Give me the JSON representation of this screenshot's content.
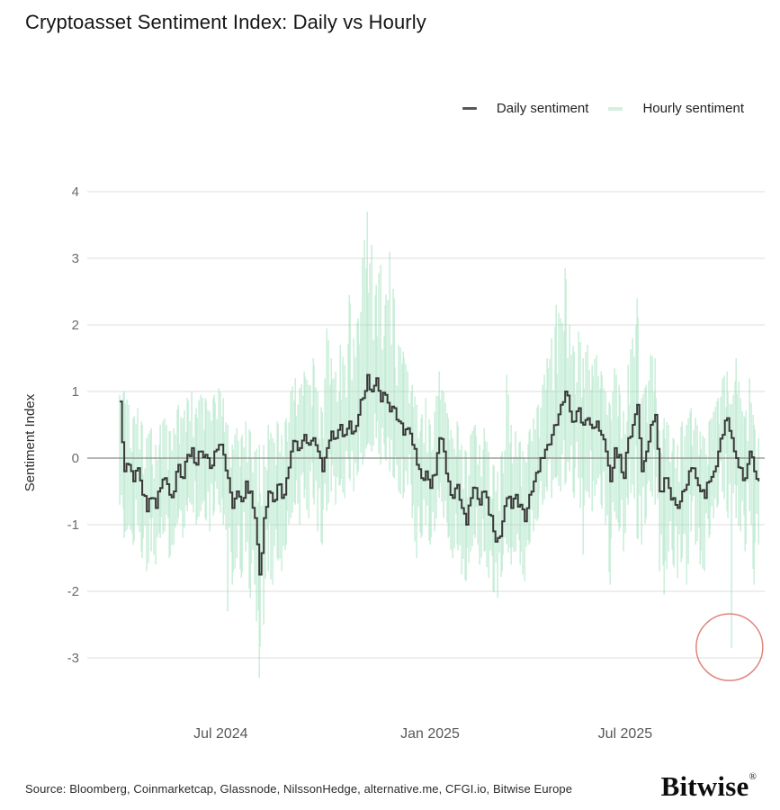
{
  "page": {
    "title": "Cryptoasset Sentiment Index: Daily vs Hourly"
  },
  "legend": {
    "items": [
      {
        "label": "Daily sentiment",
        "swatch_color": "#55585a"
      },
      {
        "label": "Hourly sentiment",
        "swatch_color": "#d5efe0"
      }
    ]
  },
  "footer": {
    "source": "Source: Bloomberg, Coinmarketcap, Glassnode, NilssonHedge, alternative.me, CFGI.io, Bitwise Europe",
    "logo_text": "Bitwise",
    "logo_mark": "®"
  },
  "chart_data": {
    "type": "line",
    "title": "Cryptoasset Sentiment Index: Daily vs Hourly",
    "xlabel": "",
    "ylabel": "Sentiment Index",
    "ylim": [
      -3,
      4
    ],
    "grid": "horizontal-only",
    "legend_position": "top-right",
    "colors": {
      "daily_line": "#383838",
      "hourly_line": "#8edcb0",
      "gridline": "#e4e4e4",
      "zero_line": "#8a8a8a",
      "tick_label": "#6b6b6b",
      "x_label": "#585858",
      "annotation_circle": "#e0837b"
    },
    "yticks": [
      4,
      3,
      2,
      1,
      0,
      -1,
      -2,
      -3
    ],
    "xticks": [
      {
        "label": "Jul 2024",
        "pos": 0.197
      },
      {
        "label": "Jan 2025",
        "pos": 0.506
      },
      {
        "label": "Jul 2025",
        "pos": 0.794
      }
    ],
    "x_start_frac": 0.048,
    "x_end_frac": 0.991,
    "series": [
      {
        "name": "Daily sentiment",
        "style": "step",
        "values": [
          0.85,
          -0.2,
          -0.1,
          -0.35,
          -0.15,
          -0.55,
          -0.8,
          -0.6,
          -0.75,
          -0.45,
          -0.3,
          -0.55,
          -0.5,
          -0.1,
          -0.3,
          0.05,
          0.15,
          -0.1,
          0.1,
          0.05,
          -0.15,
          0.1,
          0.2,
          0.05,
          -0.3,
          -0.75,
          -0.5,
          -0.65,
          -0.35,
          -0.5,
          -0.9,
          -1.75,
          -0.9,
          -0.5,
          -0.65,
          -0.4,
          -0.6,
          -0.3,
          0.1,
          0.25,
          0.15,
          0.35,
          0.2,
          0.3,
          0.1,
          -0.2,
          0.15,
          0.4,
          0.3,
          0.5,
          0.35,
          0.55,
          0.4,
          0.65,
          0.9,
          1.25,
          1.0,
          1.2,
          0.85,
          0.95,
          0.7,
          0.75,
          0.55,
          0.35,
          0.45,
          0.2,
          -0.1,
          -0.3,
          -0.2,
          -0.45,
          -0.25,
          0.3,
          0.1,
          -0.35,
          -0.6,
          -0.4,
          -0.75,
          -1.0,
          -0.6,
          -0.45,
          -0.7,
          -0.5,
          -0.85,
          -1.1,
          -1.2,
          -0.95,
          -0.6,
          -0.75,
          -0.55,
          -0.7,
          -0.95,
          -0.55,
          -0.35,
          -0.2,
          0.0,
          0.2,
          0.35,
          0.5,
          0.8,
          1.0,
          0.7,
          0.55,
          0.75,
          0.5,
          0.6,
          0.45,
          0.55,
          0.35,
          0.1,
          -0.35,
          0.15,
          0.05,
          -0.3,
          0.3,
          0.5,
          0.8,
          -0.2,
          0.1,
          0.5,
          0.65,
          -0.5,
          -0.3,
          -0.45,
          -0.6,
          -0.75,
          -0.5,
          -0.4,
          -0.15,
          -0.3,
          -0.5,
          -0.6,
          -0.35,
          -0.2,
          0.1,
          0.35,
          0.6,
          0.3,
          0.0,
          -0.15,
          -0.3,
          0.1,
          -0.2,
          -0.35
        ]
      },
      {
        "name": "Hourly sentiment",
        "style": "range-strokes",
        "max": [
          0.95,
          1.0,
          0.8,
          0.6,
          0.75,
          0.5,
          0.3,
          0.45,
          0.2,
          0.5,
          0.6,
          0.4,
          0.45,
          0.8,
          0.6,
          0.9,
          1.0,
          0.75,
          0.95,
          0.9,
          0.7,
          0.95,
          1.05,
          0.9,
          0.5,
          0.2,
          0.45,
          0.3,
          0.55,
          0.4,
          0.1,
          0.2,
          0.2,
          0.5,
          0.3,
          0.55,
          0.35,
          0.6,
          1.0,
          1.2,
          1.05,
          1.3,
          1.1,
          1.5,
          1.0,
          0.7,
          1.95,
          1.5,
          1.3,
          1.7,
          1.4,
          2.45,
          1.8,
          2.1,
          3.0,
          3.7,
          3.2,
          2.6,
          2.9,
          2.3,
          3.1,
          2.4,
          1.7,
          1.6,
          1.3,
          1.1,
          0.8,
          0.6,
          0.9,
          0.5,
          0.7,
          1.3,
          1.0,
          0.6,
          0.3,
          0.55,
          0.2,
          0.1,
          0.35,
          0.5,
          0.2,
          0.45,
          0.1,
          -0.1,
          -0.2,
          0.1,
          1.25,
          0.5,
          0.4,
          0.25,
          0.0,
          0.4,
          0.6,
          0.8,
          1.1,
          1.5,
          1.8,
          2.3,
          2.1,
          2.85,
          2.0,
          1.6,
          1.9,
          1.5,
          1.7,
          1.4,
          1.55,
          1.3,
          1.0,
          0.8,
          1.35,
          1.1,
          0.7,
          1.4,
          1.8,
          2.4,
          0.9,
          1.1,
          1.55,
          1.5,
          0.4,
          0.6,
          0.5,
          0.3,
          0.2,
          0.55,
          0.5,
          0.75,
          0.6,
          0.4,
          0.3,
          0.55,
          0.7,
          0.9,
          1.2,
          1.3,
          0.8,
          1.5,
          0.9,
          0.6,
          1.2,
          0.5,
          0.3
        ],
        "min": [
          -0.7,
          -1.2,
          -1.0,
          -1.3,
          -1.0,
          -1.5,
          -1.7,
          -1.4,
          -1.6,
          -1.2,
          -1.1,
          -1.5,
          -1.3,
          -0.9,
          -1.2,
          -0.8,
          -0.7,
          -1.0,
          -0.8,
          -0.9,
          -1.1,
          -0.8,
          -0.7,
          -1.0,
          -2.3,
          -1.9,
          -1.5,
          -1.8,
          -1.4,
          -2.1,
          -1.9,
          -3.3,
          -2.5,
          -1.7,
          -1.9,
          -1.5,
          -1.7,
          -1.3,
          -0.9,
          -0.7,
          -1.0,
          -0.6,
          -0.9,
          -0.6,
          -1.1,
          -1.3,
          -0.8,
          -0.5,
          -0.7,
          -0.4,
          -0.6,
          -0.3,
          -0.5,
          -0.2,
          -0.1,
          0.2,
          0.1,
          0.3,
          -0.1,
          0.0,
          -0.2,
          -0.3,
          -0.5,
          -0.6,
          -0.4,
          -0.9,
          -1.5,
          -1.2,
          -1.0,
          -1.3,
          -1.1,
          -0.6,
          -0.9,
          -1.2,
          -1.5,
          -1.3,
          -1.75,
          -1.85,
          -1.4,
          -1.2,
          -1.6,
          -1.4,
          -1.8,
          -2.0,
          -2.1,
          -1.7,
          -1.3,
          -1.6,
          -1.4,
          -1.6,
          -1.85,
          -1.3,
          -1.1,
          -0.9,
          -0.7,
          -0.5,
          -0.6,
          -0.3,
          -0.5,
          -0.4,
          -0.2,
          -0.6,
          -0.3,
          -1.45,
          -0.5,
          -0.8,
          -0.4,
          -0.7,
          -1.0,
          -1.9,
          -0.8,
          -1.1,
          -1.4,
          -0.7,
          -0.4,
          -1.2,
          -1.3,
          -0.9,
          -0.5,
          -0.7,
          -1.7,
          -2.05,
          -1.4,
          -1.6,
          -1.8,
          -1.5,
          -1.9,
          -1.1,
          -1.3,
          -1.6,
          -1.7,
          -1.2,
          -0.9,
          -0.7,
          -0.5,
          -0.8,
          -2.85,
          -0.9,
          -1.1,
          -1.4,
          -0.8,
          -1.9,
          -1.3
        ]
      }
    ],
    "annotation": {
      "type": "circle",
      "note": "highlights most recent hourly sentiment plunge",
      "x_frac": 0.948,
      "value": -2.84,
      "radius_px": 37
    }
  }
}
